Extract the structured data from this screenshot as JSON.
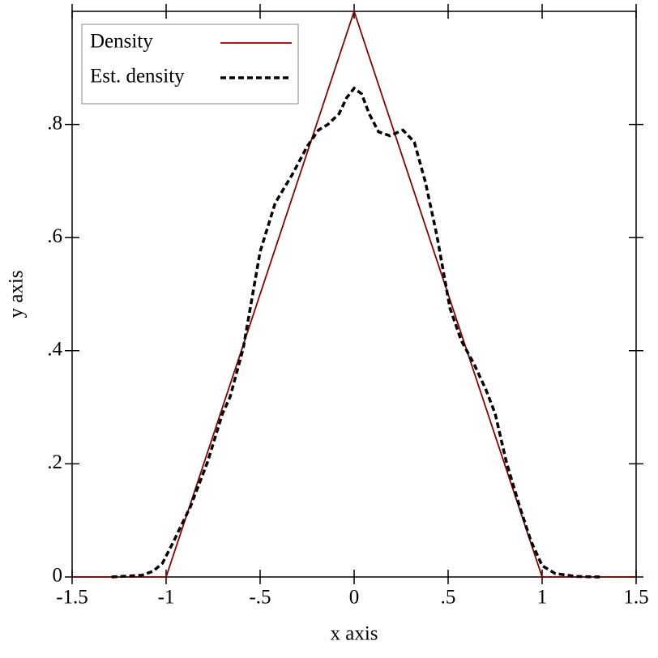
{
  "chart_data": {
    "type": "line",
    "x_label": "x axis",
    "y_label": "y axis",
    "xlim": [
      -1.5,
      1.5
    ],
    "ylim": [
      0,
      1
    ],
    "xticks": [
      -1.5,
      -1,
      {
        "value": -0.5,
        "label": "-.5"
      },
      0,
      {
        "value": 0.5,
        "label": ".5"
      },
      1,
      1.5
    ],
    "yticks": [
      0,
      {
        "value": 0.2,
        "label": ".2"
      },
      {
        "value": 0.4,
        "label": ".4"
      },
      {
        "value": 0.6,
        "label": ".6"
      },
      {
        "value": 0.8,
        "label": ".8"
      }
    ],
    "legend": "top-left",
    "series": [
      {
        "name": "Density",
        "color": "#8b0000",
        "dashed": false,
        "x": [
          -1.5,
          -1,
          0,
          1,
          1.5
        ],
        "values": [
          0,
          0,
          1,
          0,
          0
        ]
      },
      {
        "name": "Est. density",
        "color": "#000000",
        "dashed": true,
        "x": [
          -1.29,
          -1.13,
          -1.07,
          -1.02,
          -0.96,
          -0.87,
          -0.78,
          -0.7,
          -0.66,
          -0.59,
          -0.5,
          -0.42,
          -0.33,
          -0.25,
          -0.19,
          -0.14,
          -0.08,
          -0.04,
          0,
          0.04,
          0.08,
          0.13,
          0.19,
          0.26,
          0.32,
          0.38,
          0.44,
          0.51,
          0.57,
          0.64,
          0.7,
          0.75,
          0.81,
          0.88,
          0.94,
          1,
          1.07,
          1.18,
          1.31
        ],
        "values": [
          0,
          0.003,
          0.01,
          0.024,
          0.063,
          0.125,
          0.203,
          0.289,
          0.318,
          0.404,
          0.575,
          0.661,
          0.711,
          0.761,
          0.79,
          0.8,
          0.819,
          0.847,
          0.864,
          0.854,
          0.819,
          0.787,
          0.78,
          0.79,
          0.769,
          0.697,
          0.604,
          0.475,
          0.418,
          0.375,
          0.332,
          0.289,
          0.203,
          0.125,
          0.064,
          0.02,
          0.006,
          0.001,
          0
        ]
      }
    ]
  }
}
